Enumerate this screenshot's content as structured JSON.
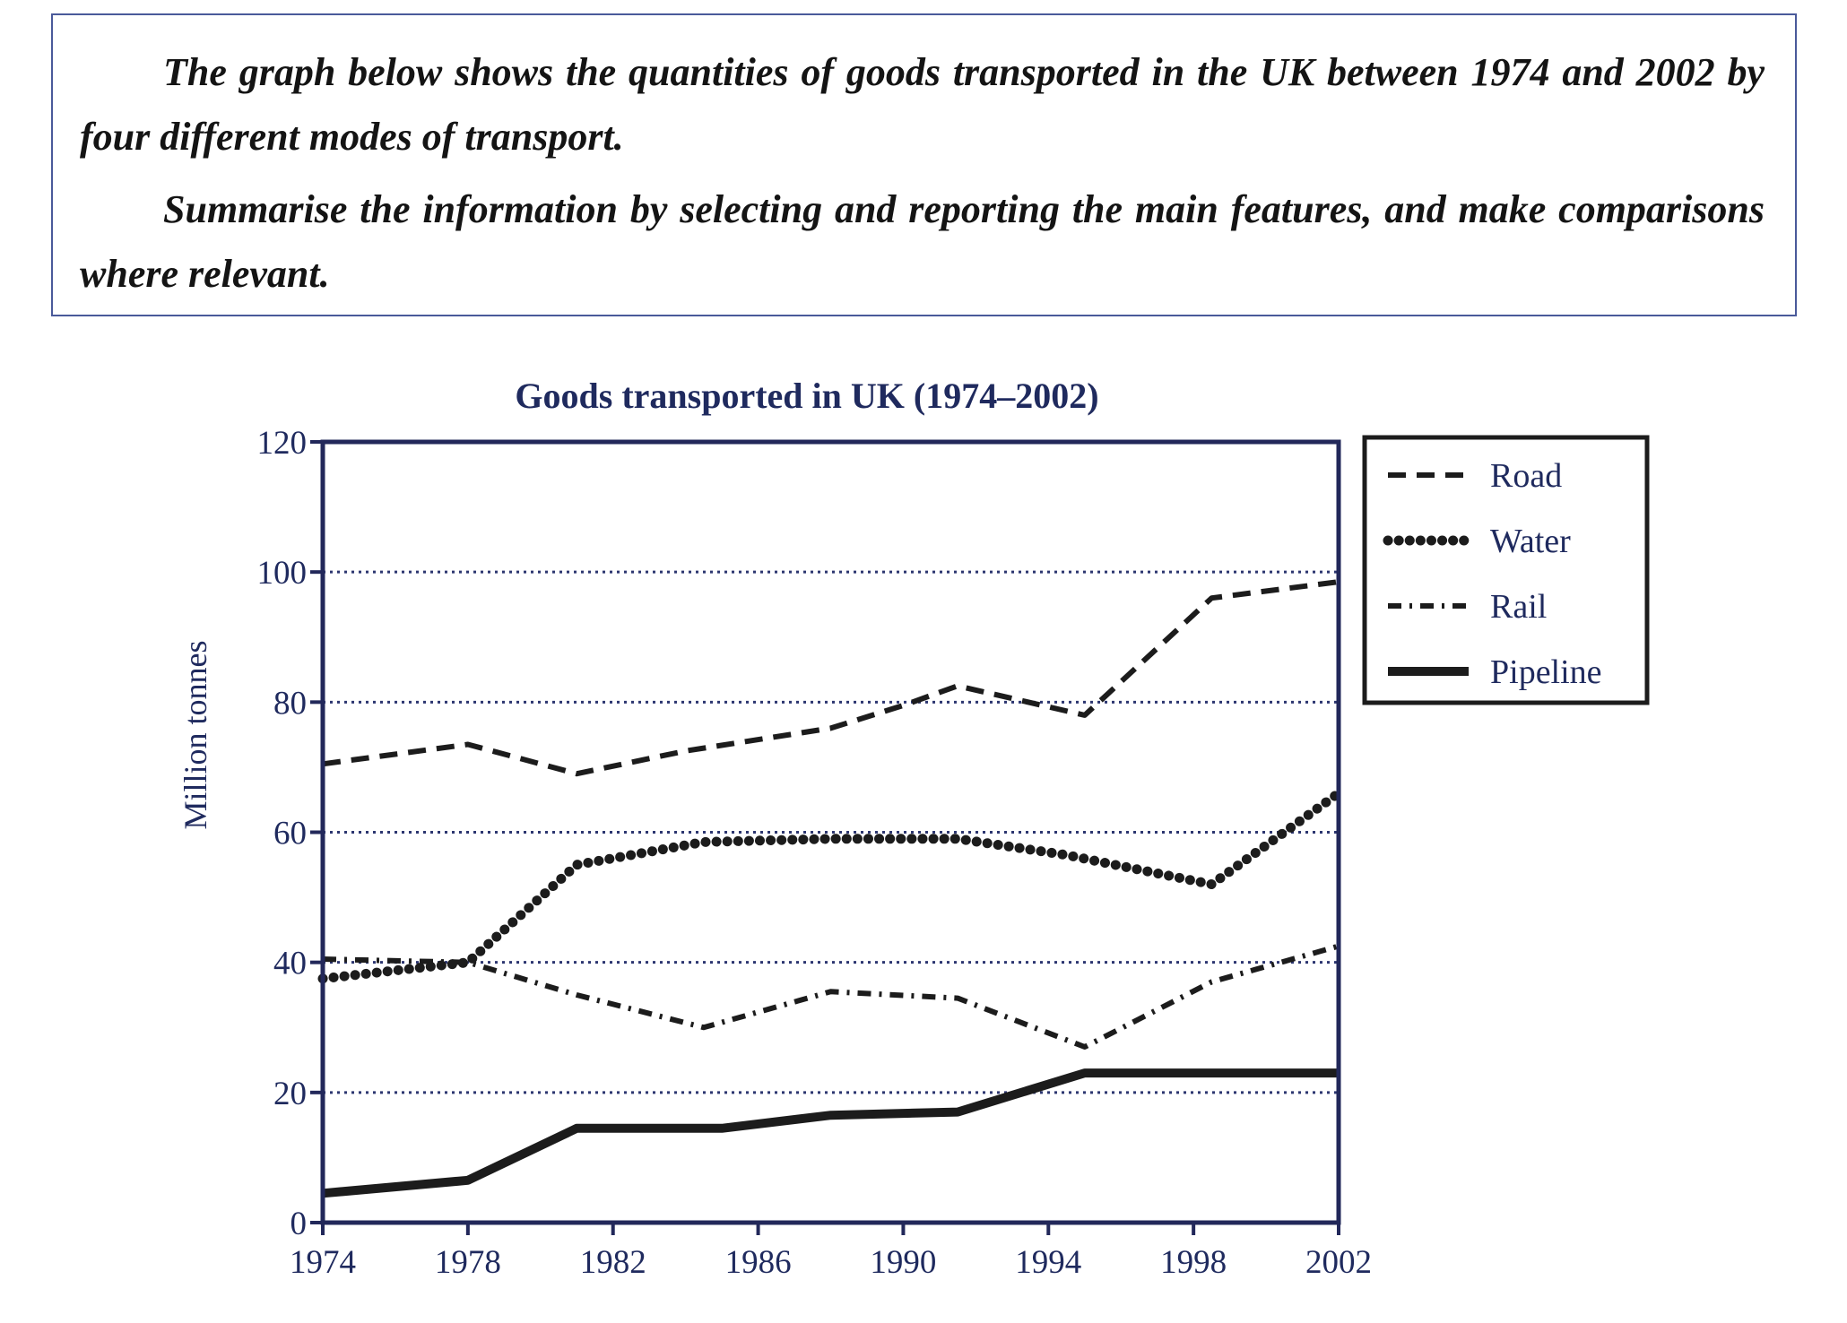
{
  "task": {
    "paragraph_1": "The graph below shows the quantities of goods transported in the UK between 1974 and 2002 by four different modes of transport.",
    "paragraph_2": "Summarise the information by selecting and reporting the main features, and make comparisons where relevant."
  },
  "chart_data": {
    "type": "line",
    "title": "Goods transported in UK (1974–2002)",
    "xlabel": "",
    "ylabel": "Million tonnes",
    "x_ticks": [
      1974,
      1978,
      1982,
      1986,
      1990,
      1994,
      1998,
      2002
    ],
    "y_ticks": [
      0,
      20,
      40,
      60,
      80,
      100,
      120
    ],
    "xlim": [
      1974,
      2002
    ],
    "ylim": [
      0,
      120
    ],
    "grid": "horizontal dotted",
    "legend_position": "right",
    "series": [
      {
        "name": "Road",
        "style": "dashed",
        "points": [
          [
            1974,
            70.5
          ],
          [
            1978,
            73.5
          ],
          [
            1981,
            69
          ],
          [
            1984,
            72.5
          ],
          [
            1988,
            76
          ],
          [
            1990,
            79.5
          ],
          [
            1991.5,
            82.5
          ],
          [
            1995,
            78
          ],
          [
            1998.5,
            96
          ],
          [
            2002,
            98.5
          ]
        ]
      },
      {
        "name": "Water",
        "style": "dotted",
        "points": [
          [
            1974,
            37.5
          ],
          [
            1978,
            40
          ],
          [
            1981,
            55
          ],
          [
            1984.5,
            58.5
          ],
          [
            1988,
            59
          ],
          [
            1991.5,
            59
          ],
          [
            1994.5,
            56.5
          ],
          [
            1998.5,
            52
          ],
          [
            2002,
            66
          ]
        ]
      },
      {
        "name": "Rail",
        "style": "dash-dot",
        "points": [
          [
            1974,
            40.5
          ],
          [
            1978,
            40
          ],
          [
            1981,
            35
          ],
          [
            1984.5,
            30
          ],
          [
            1988,
            35.5
          ],
          [
            1991.5,
            34.5
          ],
          [
            1995,
            27
          ],
          [
            1998.5,
            37
          ],
          [
            2002,
            42.5
          ]
        ]
      },
      {
        "name": "Pipeline",
        "style": "solid",
        "points": [
          [
            1974,
            4.5
          ],
          [
            1978,
            6.5
          ],
          [
            1981,
            14.5
          ],
          [
            1985,
            14.5
          ],
          [
            1988,
            16.5
          ],
          [
            1991.5,
            17
          ],
          [
            1995,
            23
          ],
          [
            2002,
            23
          ]
        ]
      }
    ],
    "colors": {
      "line": "#1c1c1c",
      "axis": "#22285a",
      "grid": "#2c3670",
      "text": "#1f2a5e"
    }
  }
}
